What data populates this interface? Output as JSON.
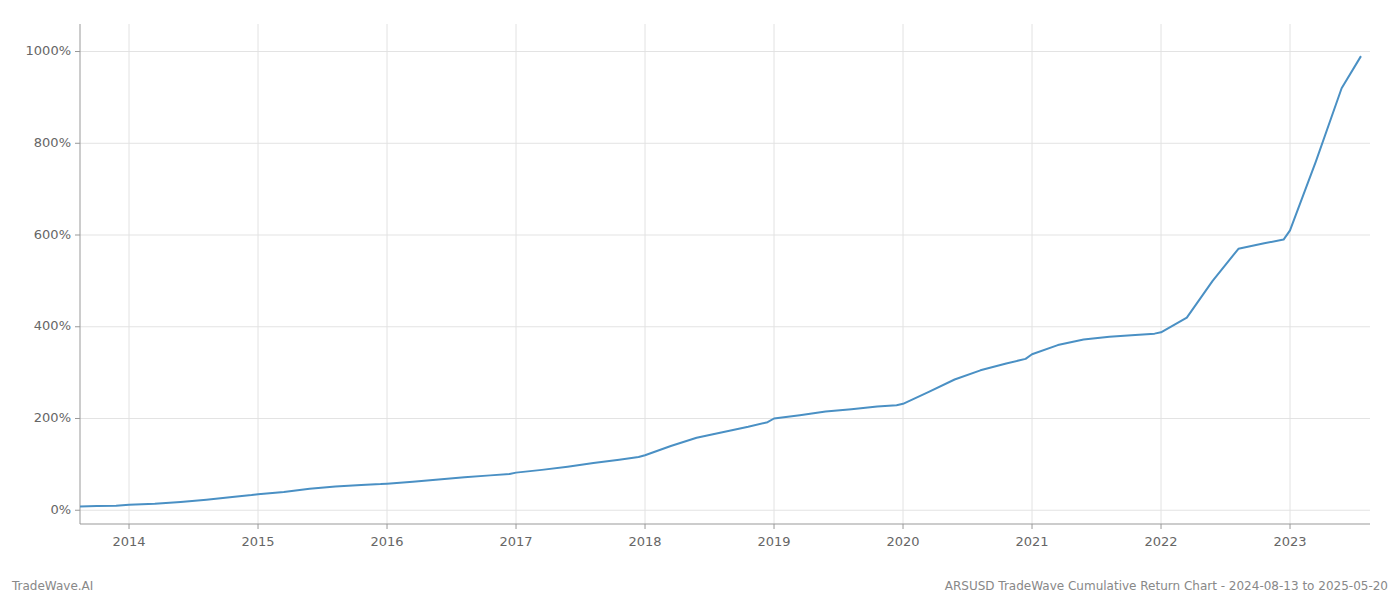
{
  "chart_data": {
    "type": "line",
    "x": [
      2013.62,
      2013.75,
      2013.9,
      2014.0,
      2014.2,
      2014.4,
      2014.6,
      2014.8,
      2014.95,
      2015.0,
      2015.2,
      2015.4,
      2015.6,
      2015.8,
      2015.95,
      2016.0,
      2016.2,
      2016.4,
      2016.6,
      2016.8,
      2016.95,
      2017.0,
      2017.2,
      2017.4,
      2017.6,
      2017.8,
      2017.95,
      2018.0,
      2018.2,
      2018.4,
      2018.6,
      2018.8,
      2018.95,
      2019.0,
      2019.2,
      2019.4,
      2019.6,
      2019.8,
      2019.95,
      2020.0,
      2020.2,
      2020.4,
      2020.6,
      2020.8,
      2020.95,
      2021.0,
      2021.2,
      2021.4,
      2021.6,
      2021.8,
      2021.95,
      2022.0,
      2022.2,
      2022.4,
      2022.6,
      2022.8,
      2022.95,
      2023.0,
      2023.2,
      2023.4,
      2023.55
    ],
    "values": [
      8,
      9,
      10,
      12,
      14,
      18,
      23,
      29,
      33,
      35,
      40,
      47,
      52,
      55,
      57,
      58,
      62,
      67,
      72,
      76,
      79,
      82,
      88,
      95,
      103,
      110,
      116,
      120,
      140,
      158,
      170,
      182,
      192,
      200,
      207,
      215,
      220,
      226,
      229,
      232,
      258,
      285,
      305,
      320,
      330,
      340,
      360,
      372,
      378,
      382,
      385,
      388,
      420,
      500,
      570,
      582,
      590,
      610,
      760,
      920,
      990
    ],
    "color": "#4a90c4",
    "xlim": [
      2013.62,
      2023.62
    ],
    "xticks": [
      2014,
      2015,
      2016,
      2017,
      2018,
      2019,
      2020,
      2021,
      2022,
      2023
    ],
    "ylim": [
      -30,
      1060
    ],
    "yticks": [
      {
        "value": 0,
        "label": "0%"
      },
      {
        "value": 200,
        "label": "200%"
      },
      {
        "value": 400,
        "label": "400%"
      },
      {
        "value": 600,
        "label": "600%"
      },
      {
        "value": 800,
        "label": "800%"
      },
      {
        "value": 1000,
        "label": "1000%"
      }
    ],
    "grid": true,
    "annotations": [
      "TradeWave.AI",
      "ARSUSD TradeWave Cumulative Return Chart - 2024-08-13 to 2025-05-20"
    ]
  }
}
